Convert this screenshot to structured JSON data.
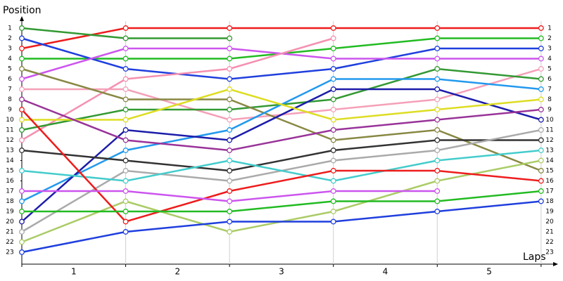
{
  "chart_data": {
    "type": "line",
    "title": "Position",
    "xlabel": "Laps",
    "lap_labels": [
      "1",
      "2",
      "3",
      "4",
      "5"
    ],
    "x": [
      0,
      1,
      2,
      3,
      4,
      5
    ],
    "xlim": [
      0,
      5.15
    ],
    "xticks": [
      0,
      1,
      2,
      3,
      4,
      5
    ],
    "ylim": [
      0,
      24
    ],
    "yticks": [
      1,
      2,
      3,
      4,
      5,
      6,
      7,
      8,
      9,
      10,
      11,
      12,
      13,
      14,
      15,
      16,
      17,
      18,
      19,
      20,
      21,
      22,
      23
    ],
    "y_inverted": true,
    "grid": true,
    "series": [
      {
        "color": "#ee1c1c",
        "values": [
          3,
          1,
          1,
          1,
          1,
          1
        ]
      },
      {
        "color": "#339933",
        "values": [
          1,
          2,
          2,
          null,
          null,
          null
        ]
      },
      {
        "color": "#22bb22",
        "values": [
          4,
          4,
          4,
          3,
          2,
          2
        ]
      },
      {
        "color": "#1f3fdd",
        "values": [
          2,
          5,
          6,
          5,
          3,
          3
        ]
      },
      {
        "color": "#cc55ee",
        "values": [
          6,
          3,
          3,
          4,
          4,
          4
        ]
      },
      {
        "color": "#f590b0",
        "values": [
          12,
          6,
          5,
          2,
          null,
          null
        ]
      },
      {
        "color": "#f5a0b8",
        "values": [
          7,
          7,
          10,
          9,
          8,
          5
        ]
      },
      {
        "color": "#339933",
        "values": [
          11,
          9,
          9,
          8,
          5,
          6
        ]
      },
      {
        "color": "#888844",
        "values": [
          5,
          8,
          8,
          12,
          11,
          15
        ]
      },
      {
        "color": "#2299ee",
        "values": [
          18,
          13,
          11,
          6,
          6,
          7
        ]
      },
      {
        "color": "#1c1caa",
        "values": [
          20,
          11,
          12,
          7,
          7,
          10
        ]
      },
      {
        "color": "#dddd22",
        "values": [
          10,
          10,
          7,
          10,
          9,
          8
        ]
      },
      {
        "color": "#993399",
        "values": [
          8,
          12,
          13,
          11,
          10,
          9
        ]
      },
      {
        "color": "#333333",
        "values": [
          13,
          14,
          15,
          13,
          12,
          12
        ]
      },
      {
        "color": "#aaaaaa",
        "values": [
          21,
          15,
          16,
          14,
          13,
          11
        ]
      },
      {
        "color": "#44cccc",
        "values": [
          15,
          16,
          14,
          16,
          14,
          13
        ]
      },
      {
        "color": "#aacc66",
        "values": [
          22,
          18,
          21,
          19,
          16,
          14
        ]
      },
      {
        "color": "#ee1c1c",
        "values": [
          9,
          20,
          17,
          15,
          15,
          16
        ]
      },
      {
        "color": "#cc55ee",
        "values": [
          17,
          17,
          18,
          17,
          17,
          null
        ]
      },
      {
        "color": "#22bb22",
        "values": [
          19,
          19,
          19,
          18,
          18,
          17
        ]
      },
      {
        "color": "#1f3fdd",
        "values": [
          23,
          21,
          20,
          20,
          19,
          18
        ]
      }
    ]
  }
}
